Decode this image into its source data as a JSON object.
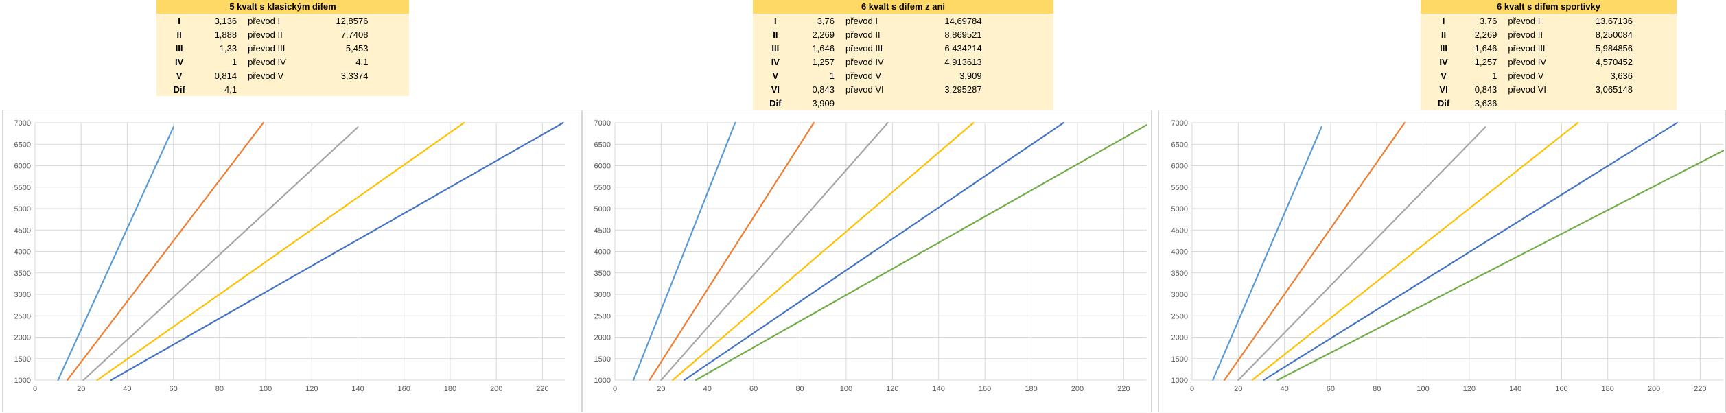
{
  "colors": {
    "header_bg": "#ffd966",
    "table_bg": "#fff2cc",
    "series": [
      "#5b9bd5",
      "#ed7d31",
      "#a5a5a5",
      "#ffc000",
      "#4472c4",
      "#70ad47"
    ]
  },
  "tables": [
    {
      "title": "5 kvalt s klasickým difem",
      "rows": [
        {
          "gear": "I",
          "ratio": "3,136",
          "label": "převod I",
          "value": "12,8576"
        },
        {
          "gear": "II",
          "ratio": "1,888",
          "label": "převod II",
          "value": "7,7408"
        },
        {
          "gear": "III",
          "ratio": "1,33",
          "label": "převod III",
          "value": "5,453"
        },
        {
          "gear": "IV",
          "ratio": "1",
          "label": "převod IV",
          "value": "4,1"
        },
        {
          "gear": "V",
          "ratio": "0,814",
          "label": "převod V",
          "value": "3,3374"
        },
        {
          "gear": "Dif",
          "ratio": "4,1",
          "label": "",
          "value": ""
        }
      ]
    },
    {
      "title": "6 kvalt s difem z ani",
      "rows": [
        {
          "gear": "I",
          "ratio": "3,76",
          "label": "převod I",
          "value": "14,69784"
        },
        {
          "gear": "II",
          "ratio": "2,269",
          "label": "převod II",
          "value": "8,869521"
        },
        {
          "gear": "III",
          "ratio": "1,646",
          "label": "převod III",
          "value": "6,434214"
        },
        {
          "gear": "IV",
          "ratio": "1,257",
          "label": "převod IV",
          "value": "4,913613"
        },
        {
          "gear": "V",
          "ratio": "1",
          "label": "převod V",
          "value": "3,909"
        },
        {
          "gear": "VI",
          "ratio": "0,843",
          "label": "převod VI",
          "value": "3,295287"
        },
        {
          "gear": "Dif",
          "ratio": "3,909",
          "label": "",
          "value": ""
        }
      ]
    },
    {
      "title": "6 kvalt s difem sportivky",
      "rows": [
        {
          "gear": "I",
          "ratio": "3,76",
          "label": "převod I",
          "value": "13,67136"
        },
        {
          "gear": "II",
          "ratio": "2,269",
          "label": "převod II",
          "value": "8,250084"
        },
        {
          "gear": "III",
          "ratio": "1,646",
          "label": "převod III",
          "value": "5,984856"
        },
        {
          "gear": "IV",
          "ratio": "1,257",
          "label": "převod IV",
          "value": "4,570452"
        },
        {
          "gear": "V",
          "ratio": "1",
          "label": "převod V",
          "value": "3,636"
        },
        {
          "gear": "VI",
          "ratio": "0,843",
          "label": "převod VI",
          "value": "3,065148"
        },
        {
          "gear": "Dif",
          "ratio": "3,636",
          "label": "",
          "value": ""
        }
      ]
    }
  ],
  "chart_data": [
    {
      "type": "line",
      "title": "",
      "xlabel": "",
      "ylabel": "",
      "xlim": [
        0,
        230
      ],
      "ylim": [
        1000,
        7000
      ],
      "xticks": [
        0,
        20,
        40,
        60,
        80,
        100,
        120,
        140,
        160,
        180,
        200,
        220
      ],
      "yticks": [
        1000,
        1500,
        2000,
        2500,
        3000,
        3500,
        4000,
        4500,
        5000,
        5500,
        6000,
        6500,
        7000
      ],
      "grid": true,
      "series": [
        {
          "color": "#5b9bd5",
          "points": [
            [
              10,
              1000
            ],
            [
              60,
              6900
            ]
          ]
        },
        {
          "color": "#ed7d31",
          "points": [
            [
              14,
              1000
            ],
            [
              99,
              7000
            ]
          ]
        },
        {
          "color": "#a5a5a5",
          "points": [
            [
              21,
              1000
            ],
            [
              140,
              6900
            ]
          ]
        },
        {
          "color": "#ffc000",
          "points": [
            [
              27,
              1000
            ],
            [
              186,
              7000
            ]
          ]
        },
        {
          "color": "#4472c4",
          "points": [
            [
              33,
              1000
            ],
            [
              229,
              7000
            ]
          ]
        }
      ]
    },
    {
      "type": "line",
      "title": "",
      "xlabel": "",
      "ylabel": "",
      "xlim": [
        0,
        230
      ],
      "ylim": [
        1000,
        7000
      ],
      "xticks": [
        0,
        20,
        40,
        60,
        80,
        100,
        120,
        140,
        160,
        180,
        200,
        220
      ],
      "yticks": [
        1000,
        1500,
        2000,
        2500,
        3000,
        3500,
        4000,
        4500,
        5000,
        5500,
        6000,
        6500,
        7000
      ],
      "grid": true,
      "series": [
        {
          "color": "#5b9bd5",
          "points": [
            [
              8,
              1000
            ],
            [
              52,
              7000
            ]
          ]
        },
        {
          "color": "#ed7d31",
          "points": [
            [
              15,
              1000
            ],
            [
              86,
              7000
            ]
          ]
        },
        {
          "color": "#a5a5a5",
          "points": [
            [
              20,
              1000
            ],
            [
              118,
              7000
            ]
          ]
        },
        {
          "color": "#ffc000",
          "points": [
            [
              25,
              1000
            ],
            [
              155,
              7000
            ]
          ]
        },
        {
          "color": "#4472c4",
          "points": [
            [
              30,
              1000
            ],
            [
              194,
              7000
            ]
          ]
        },
        {
          "color": "#70ad47",
          "points": [
            [
              35,
              1000
            ],
            [
              230,
              6950
            ]
          ]
        }
      ]
    },
    {
      "type": "line",
      "title": "",
      "xlabel": "",
      "ylabel": "",
      "xlim": [
        0,
        230
      ],
      "ylim": [
        1000,
        7000
      ],
      "xticks": [
        0,
        20,
        40,
        60,
        80,
        100,
        120,
        140,
        160,
        180,
        200,
        220
      ],
      "yticks": [
        1000,
        1500,
        2000,
        2500,
        3000,
        3500,
        4000,
        4500,
        5000,
        5500,
        6000,
        6500,
        7000
      ],
      "grid": true,
      "series": [
        {
          "color": "#5b9bd5",
          "points": [
            [
              9,
              1000
            ],
            [
              56,
              6900
            ]
          ]
        },
        {
          "color": "#ed7d31",
          "points": [
            [
              14,
              1000
            ],
            [
              92,
              7000
            ]
          ]
        },
        {
          "color": "#a5a5a5",
          "points": [
            [
              20,
              1000
            ],
            [
              127,
              6900
            ]
          ]
        },
        {
          "color": "#ffc000",
          "points": [
            [
              26,
              1000
            ],
            [
              167,
              7000
            ]
          ]
        },
        {
          "color": "#4472c4",
          "points": [
            [
              31,
              1000
            ],
            [
              210,
              7000
            ]
          ]
        },
        {
          "color": "#70ad47",
          "points": [
            [
              37,
              1000
            ],
            [
              230,
              6350
            ]
          ]
        }
      ]
    }
  ]
}
